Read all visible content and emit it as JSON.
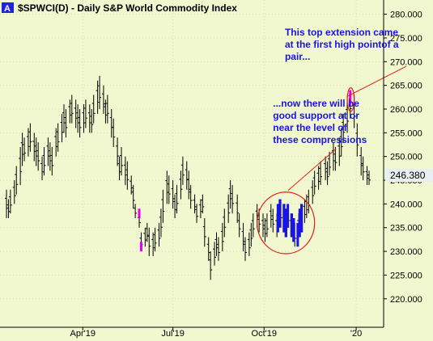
{
  "header": {
    "badge": "A",
    "title": "$SPWCI(D) - Daily  S&P World Commodity Index"
  },
  "colors": {
    "background": "#f1f7cf",
    "bar": "#000000",
    "compression_bar": "#1a14e6",
    "marker_bar": "#e600e6",
    "annotation_text": "#1a14e6",
    "ellipse": "#e21b1b",
    "price_tag": "#e9eef2",
    "badge": "#1f24d6"
  },
  "chart_data": {
    "type": "ohlc-bar",
    "title": "$SPWCI(D) - Daily  S&P World Commodity Index",
    "xlabel": "",
    "ylabel": "",
    "ylim": [
      214,
      283
    ],
    "y_ticks": [
      220,
      225,
      230,
      235,
      240,
      245,
      250,
      255,
      260,
      265,
      270,
      275,
      280
    ],
    "y_tick_labels": [
      "220.000",
      "225.000",
      "230.000",
      "235.000",
      "240.000",
      "245.000",
      "250.000",
      "255.000",
      "260.000",
      "265.000",
      "270.000",
      "275.000",
      "280.000"
    ],
    "x_tick_labels": [
      {
        "label": "Apr'19",
        "date": "2019-04-01"
      },
      {
        "label": "Jul'19",
        "date": "2019-07-01"
      },
      {
        "label": "Oct'19",
        "date": "2019-10-01"
      },
      {
        "label": "'20",
        "date": "2020-01-02"
      }
    ],
    "last_value": "246.380",
    "bars": [
      {
        "date": "2019-01-14",
        "high": 243,
        "low": 237
      },
      {
        "date": "2019-01-16",
        "high": 241,
        "low": 237
      },
      {
        "date": "2019-01-18",
        "high": 243,
        "low": 238
      },
      {
        "date": "2019-01-22",
        "high": 245,
        "low": 240
      },
      {
        "date": "2019-01-24",
        "high": 248,
        "low": 242
      },
      {
        "date": "2019-01-28",
        "high": 252,
        "low": 244
      },
      {
        "date": "2019-01-30",
        "high": 255,
        "low": 248
      },
      {
        "date": "2019-02-01",
        "high": 254,
        "low": 249
      },
      {
        "date": "2019-02-05",
        "high": 256,
        "low": 250
      },
      {
        "date": "2019-02-07",
        "high": 257,
        "low": 251
      },
      {
        "date": "2019-02-11",
        "high": 255,
        "low": 249
      },
      {
        "date": "2019-02-13",
        "high": 254,
        "low": 248
      },
      {
        "date": "2019-02-15",
        "high": 253,
        "low": 247
      },
      {
        "date": "2019-02-19",
        "high": 250,
        "low": 245
      },
      {
        "date": "2019-02-21",
        "high": 252,
        "low": 246
      },
      {
        "date": "2019-02-25",
        "high": 254,
        "low": 248
      },
      {
        "date": "2019-02-27",
        "high": 253,
        "low": 247
      },
      {
        "date": "2019-03-01",
        "high": 252,
        "low": 246
      },
      {
        "date": "2019-03-05",
        "high": 256,
        "low": 250
      },
      {
        "date": "2019-03-07",
        "high": 257,
        "low": 251
      },
      {
        "date": "2019-03-11",
        "high": 259,
        "low": 253
      },
      {
        "date": "2019-03-13",
        "high": 261,
        "low": 255
      },
      {
        "date": "2019-03-15",
        "high": 260,
        "low": 254
      },
      {
        "date": "2019-03-19",
        "high": 262,
        "low": 257
      },
      {
        "date": "2019-03-21",
        "high": 263,
        "low": 257
      },
      {
        "date": "2019-03-25",
        "high": 262,
        "low": 256
      },
      {
        "date": "2019-03-27",
        "high": 261,
        "low": 255
      },
      {
        "date": "2019-03-29",
        "high": 260,
        "low": 254
      },
      {
        "date": "2019-04-02",
        "high": 261,
        "low": 255
      },
      {
        "date": "2019-04-04",
        "high": 262,
        "low": 256
      },
      {
        "date": "2019-04-08",
        "high": 261,
        "low": 255
      },
      {
        "date": "2019-04-10",
        "high": 260,
        "low": 255
      },
      {
        "date": "2019-04-12",
        "high": 263,
        "low": 257
      },
      {
        "date": "2019-04-16",
        "high": 266,
        "low": 259
      },
      {
        "date": "2019-04-18",
        "high": 267,
        "low": 260
      },
      {
        "date": "2019-04-22",
        "high": 265,
        "low": 259
      },
      {
        "date": "2019-04-24",
        "high": 262,
        "low": 257
      },
      {
        "date": "2019-04-26",
        "high": 263,
        "low": 257
      },
      {
        "date": "2019-04-30",
        "high": 260,
        "low": 254
      },
      {
        "date": "2019-05-02",
        "high": 258,
        "low": 252
      },
      {
        "date": "2019-05-06",
        "high": 254,
        "low": 248
      },
      {
        "date": "2019-05-08",
        "high": 250,
        "low": 245
      },
      {
        "date": "2019-05-10",
        "high": 252,
        "low": 246
      },
      {
        "date": "2019-05-14",
        "high": 250,
        "low": 244
      },
      {
        "date": "2019-05-16",
        "high": 249,
        "low": 243
      },
      {
        "date": "2019-05-20",
        "high": 246,
        "low": 242
      },
      {
        "date": "2019-05-22",
        "high": 244,
        "low": 239
      },
      {
        "date": "2019-05-24",
        "high": 240,
        "low": 237
      },
      {
        "date": "2019-05-28",
        "high": 238,
        "low": 235
      },
      {
        "date": "2019-05-30",
        "high": 234,
        "low": 230
      },
      {
        "date": "2019-06-03",
        "high": 235,
        "low": 231
      },
      {
        "date": "2019-06-05",
        "high": 236,
        "low": 232
      },
      {
        "date": "2019-06-07",
        "high": 235,
        "low": 229
      },
      {
        "date": "2019-06-11",
        "high": 234,
        "low": 229
      },
      {
        "date": "2019-06-13",
        "high": 235,
        "low": 230
      },
      {
        "date": "2019-06-17",
        "high": 236,
        "low": 231
      },
      {
        "date": "2019-06-19",
        "high": 239,
        "low": 233
      },
      {
        "date": "2019-06-21",
        "high": 243,
        "low": 236
      },
      {
        "date": "2019-06-25",
        "high": 247,
        "low": 240
      },
      {
        "date": "2019-06-27",
        "high": 246,
        "low": 240
      },
      {
        "date": "2019-07-01",
        "high": 245,
        "low": 239
      },
      {
        "date": "2019-07-03",
        "high": 242,
        "low": 237
      },
      {
        "date": "2019-07-05",
        "high": 244,
        "low": 238
      },
      {
        "date": "2019-07-09",
        "high": 247,
        "low": 241
      },
      {
        "date": "2019-07-11",
        "high": 250,
        "low": 244
      },
      {
        "date": "2019-07-15",
        "high": 249,
        "low": 243
      },
      {
        "date": "2019-07-17",
        "high": 247,
        "low": 241
      },
      {
        "date": "2019-07-19",
        "high": 244,
        "low": 239
      },
      {
        "date": "2019-07-23",
        "high": 242,
        "low": 238
      },
      {
        "date": "2019-07-25",
        "high": 240,
        "low": 236
      },
      {
        "date": "2019-07-29",
        "high": 241,
        "low": 237
      },
      {
        "date": "2019-07-31",
        "high": 242,
        "low": 238
      },
      {
        "date": "2019-08-02",
        "high": 237,
        "low": 231
      },
      {
        "date": "2019-08-06",
        "high": 233,
        "low": 228
      },
      {
        "date": "2019-08-08",
        "high": 230,
        "low": 224
      },
      {
        "date": "2019-08-12",
        "high": 232,
        "low": 227
      },
      {
        "date": "2019-08-14",
        "high": 234,
        "low": 229
      },
      {
        "date": "2019-08-16",
        "high": 233,
        "low": 228
      },
      {
        "date": "2019-08-20",
        "high": 236,
        "low": 230
      },
      {
        "date": "2019-08-22",
        "high": 239,
        "low": 233
      },
      {
        "date": "2019-08-26",
        "high": 242,
        "low": 236
      },
      {
        "date": "2019-08-28",
        "high": 245,
        "low": 239
      },
      {
        "date": "2019-08-30",
        "high": 244,
        "low": 238
      },
      {
        "date": "2019-09-04",
        "high": 242,
        "low": 236
      },
      {
        "date": "2019-09-06",
        "high": 238,
        "low": 233
      },
      {
        "date": "2019-09-10",
        "high": 236,
        "low": 230
      },
      {
        "date": "2019-09-12",
        "high": 233,
        "low": 228
      },
      {
        "date": "2019-09-16",
        "high": 234,
        "low": 229
      },
      {
        "date": "2019-09-18",
        "high": 236,
        "low": 231
      },
      {
        "date": "2019-09-20",
        "high": 238,
        "low": 233
      },
      {
        "date": "2019-09-24",
        "high": 240,
        "low": 235
      },
      {
        "date": "2019-09-26",
        "high": 239,
        "low": 234
      },
      {
        "date": "2019-09-30",
        "high": 238,
        "low": 233
      },
      {
        "date": "2019-10-02",
        "high": 237,
        "low": 232
      },
      {
        "date": "2019-10-04",
        "high": 238,
        "low": 233
      },
      {
        "date": "2019-10-08",
        "high": 240,
        "low": 235
      },
      {
        "date": "2019-10-10",
        "high": 239,
        "low": 234
      },
      {
        "date": "2019-10-14",
        "high": 238,
        "low": 233
      },
      {
        "date": "2019-10-16",
        "high": 240,
        "low": 235
      },
      {
        "date": "2019-10-18",
        "high": 241,
        "low": 235
      },
      {
        "date": "2019-10-22",
        "high": 240,
        "low": 234
      },
      {
        "date": "2019-10-24",
        "high": 239,
        "low": 233
      },
      {
        "date": "2019-10-28",
        "high": 238,
        "low": 233
      },
      {
        "date": "2019-10-30",
        "high": 237,
        "low": 232
      },
      {
        "date": "2019-11-01",
        "high": 236,
        "low": 231
      },
      {
        "date": "2019-11-05",
        "high": 238,
        "low": 233
      },
      {
        "date": "2019-11-07",
        "high": 240,
        "low": 234
      },
      {
        "date": "2019-11-11",
        "high": 241,
        "low": 236
      },
      {
        "date": "2019-11-13",
        "high": 242,
        "low": 237
      },
      {
        "date": "2019-11-15",
        "high": 243,
        "low": 238
      },
      {
        "date": "2019-11-19",
        "high": 245,
        "low": 240
      },
      {
        "date": "2019-11-21",
        "high": 247,
        "low": 242
      },
      {
        "date": "2019-11-25",
        "high": 248,
        "low": 243
      },
      {
        "date": "2019-11-27",
        "high": 249,
        "low": 244
      },
      {
        "date": "2019-12-02",
        "high": 250,
        "low": 245
      },
      {
        "date": "2019-12-04",
        "high": 249,
        "low": 244
      },
      {
        "date": "2019-12-06",
        "high": 251,
        "low": 246
      },
      {
        "date": "2019-12-10",
        "high": 253,
        "low": 247
      },
      {
        "date": "2019-12-12",
        "high": 252,
        "low": 247
      },
      {
        "date": "2019-12-16",
        "high": 254,
        "low": 248
      },
      {
        "date": "2019-12-18",
        "high": 256,
        "low": 250
      },
      {
        "date": "2019-12-20",
        "high": 259,
        "low": 253
      },
      {
        "date": "2019-12-24",
        "high": 262,
        "low": 255
      },
      {
        "date": "2019-12-27",
        "high": 264,
        "low": 258
      },
      {
        "date": "2019-12-31",
        "high": 263,
        "low": 256
      },
      {
        "date": "2020-01-03",
        "high": 257,
        "low": 250
      },
      {
        "date": "2020-01-07",
        "high": 252,
        "low": 246
      },
      {
        "date": "2020-01-09",
        "high": 250,
        "low": 245
      },
      {
        "date": "2020-01-13",
        "high": 248,
        "low": 244
      },
      {
        "date": "2020-01-15",
        "high": 247,
        "low": 244
      }
    ],
    "compression_bars": [
      {
        "date": "2019-10-15",
        "high": 240,
        "low": 234
      },
      {
        "date": "2019-10-17",
        "high": 241,
        "low": 235
      },
      {
        "date": "2019-10-21",
        "high": 240,
        "low": 234
      },
      {
        "date": "2019-10-23",
        "high": 239,
        "low": 233
      },
      {
        "date": "2019-10-25",
        "high": 240,
        "low": 235
      },
      {
        "date": "2019-10-29",
        "high": 238,
        "low": 233
      },
      {
        "date": "2019-10-31",
        "high": 237,
        "low": 232
      },
      {
        "date": "2019-11-04",
        "high": 236,
        "low": 231
      },
      {
        "date": "2019-11-06",
        "high": 239,
        "low": 233
      },
      {
        "date": "2019-11-08",
        "high": 240,
        "low": 234
      }
    ],
    "marked_bars": [
      {
        "date": "2019-05-28",
        "high": 239,
        "low": 237
      },
      {
        "date": "2019-05-30",
        "high": 232,
        "low": 230
      },
      {
        "date": "2019-12-27",
        "high": 264,
        "low": 261
      }
    ],
    "ellipses": [
      {
        "x1": "2019-09-24",
        "x2": "2019-11-21",
        "y1": 229.5,
        "y2": 242.5
      },
      {
        "x1": "2019-12-24",
        "x2": "2019-12-31",
        "y1": 259.5,
        "y2": 264.5
      }
    ],
    "annotations": [
      {
        "lines": [
          "This top extension came",
          "at the first high pointof a",
          "pair..."
        ],
        "x": "2019-10-22",
        "y": 275.5,
        "arrow_to": {
          "x": "2019-12-27",
          "y": 263
        }
      },
      {
        "lines": [
          "...now there will be",
          "good support at or",
          "near the level of",
          "these compressions"
        ],
        "x": "2019-10-10",
        "y": 260.5,
        "arrow_to": {
          "x": "2019-11-04",
          "y": 242.5
        }
      }
    ]
  }
}
